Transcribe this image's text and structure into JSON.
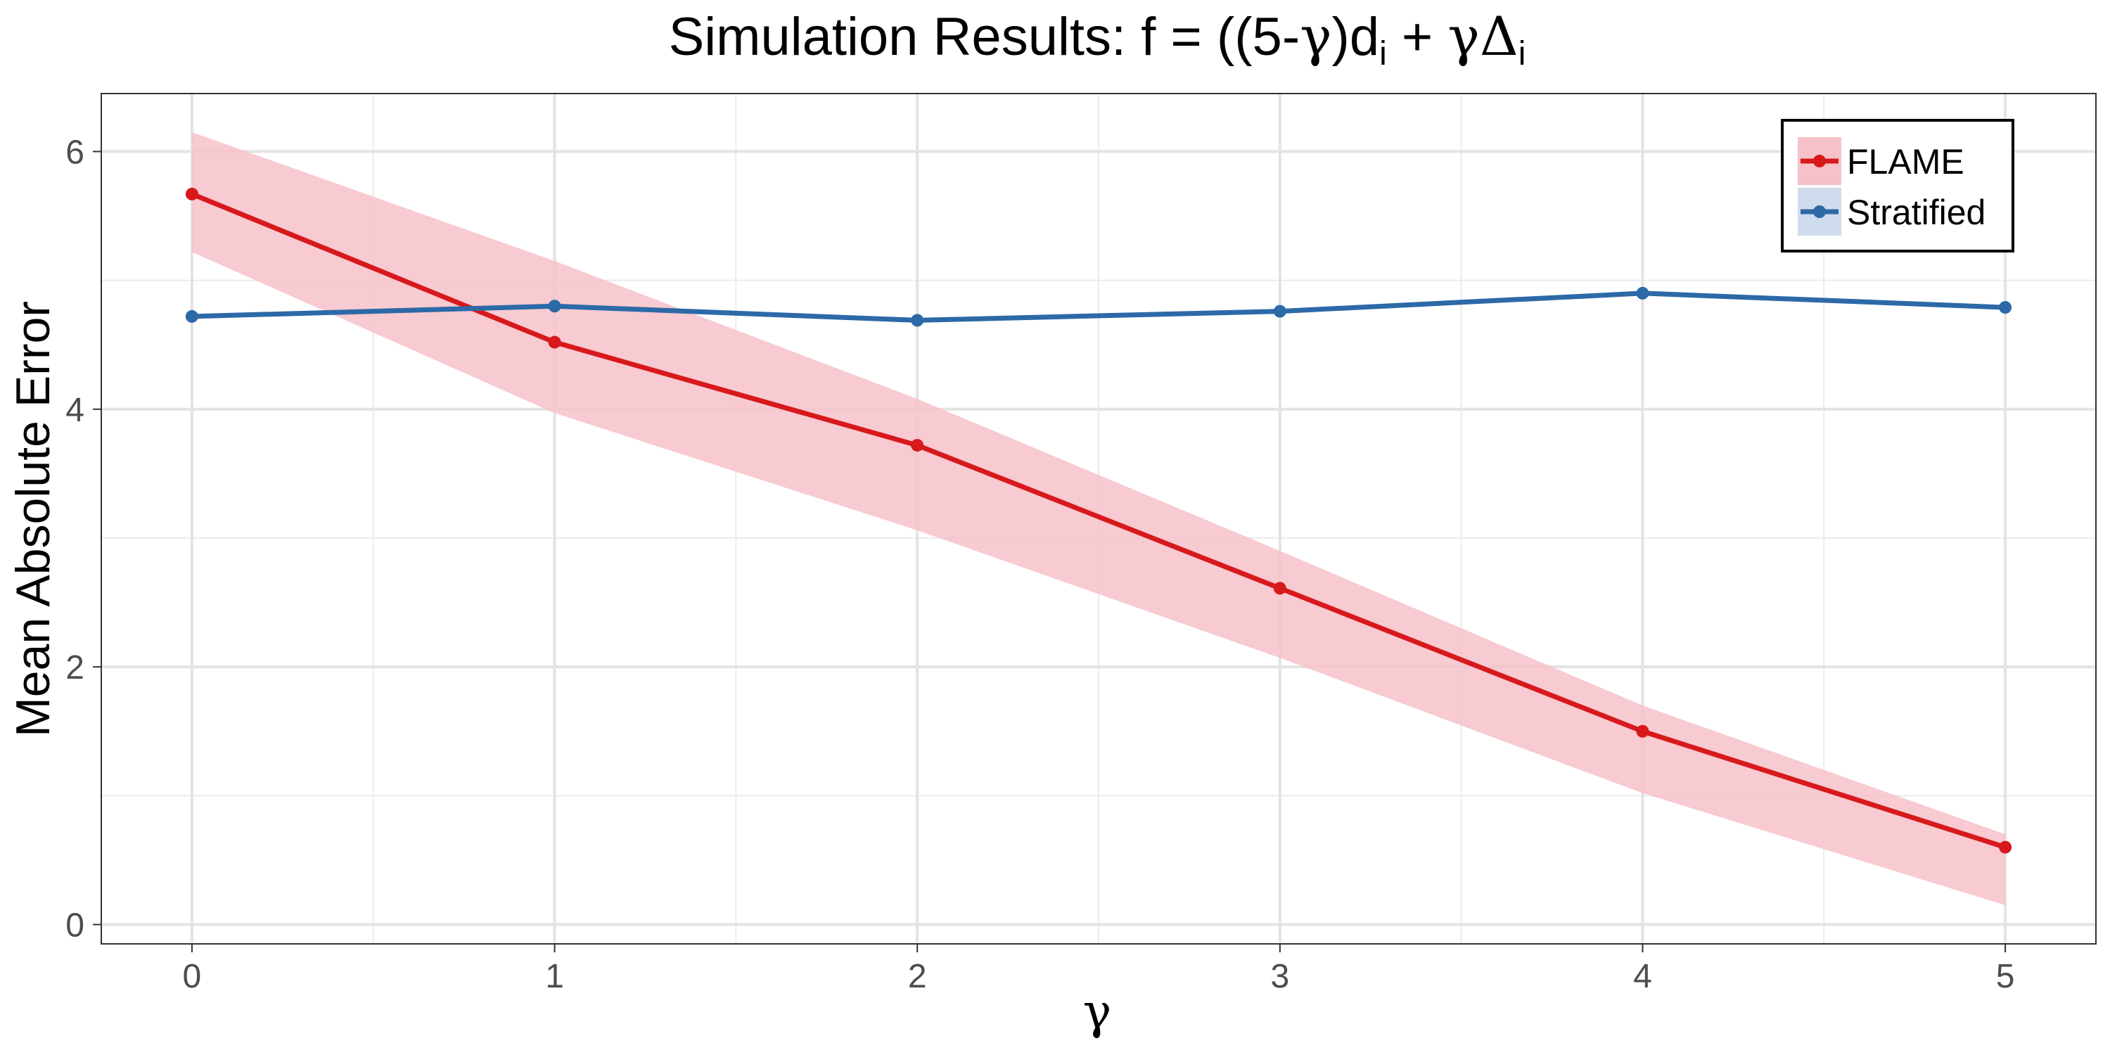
{
  "chart_data": {
    "type": "line",
    "title_parts": [
      "Simulation Results: f = ((5-",
      "γ",
      ")d",
      "i",
      " + ",
      "γΔ",
      "i"
    ],
    "xlabel": "γ",
    "ylabel": "Mean Absolute Error",
    "xlim": [
      -0.25,
      5.25
    ],
    "ylim": [
      -0.15,
      6.45
    ],
    "x_ticks": [
      0,
      1,
      2,
      3,
      4,
      5
    ],
    "x_tick_labels": [
      "0",
      "1",
      "2",
      "3",
      "4",
      "5"
    ],
    "y_ticks": [
      0,
      2,
      4,
      6
    ],
    "y_tick_labels": [
      "0",
      "2",
      "4",
      "6"
    ],
    "grid": true,
    "legend_position": "top-right",
    "x": [
      0,
      1,
      2,
      3,
      4,
      5
    ],
    "series": [
      {
        "name": "FLAME",
        "color": "#d7191c",
        "band_color": "#f7c1c9",
        "values": [
          5.67,
          4.52,
          3.72,
          2.61,
          1.5,
          0.6
        ],
        "lower": [
          5.22,
          3.97,
          3.06,
          2.07,
          1.02,
          0.15
        ],
        "upper": [
          6.15,
          5.15,
          4.08,
          2.9,
          1.7,
          0.7
        ]
      },
      {
        "name": "Stratified",
        "color": "#2c69a7",
        "band_color": "#cfdced",
        "values": [
          4.72,
          4.8,
          4.69,
          4.76,
          4.9,
          4.79
        ]
      }
    ]
  }
}
